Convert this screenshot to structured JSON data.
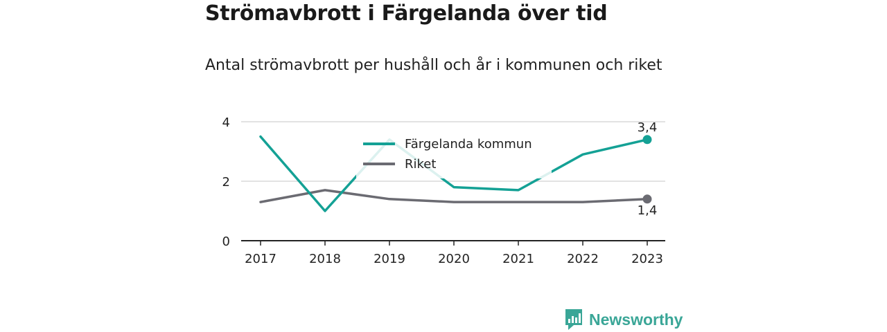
{
  "header": {
    "title": "Strömavbrott i Färgelanda över tid",
    "subtitle": "Antal strömavbrott per hushåll och år i kommunen och riket"
  },
  "brand": {
    "name": "Newsworthy",
    "icon": "bar-chart-logo-icon"
  },
  "colors": {
    "kommun": "#14a195",
    "riket": "#6b6b72",
    "axis": "#222222",
    "grid": "#d9d9d9",
    "brand": "#3aa697"
  },
  "chart_data": {
    "type": "line",
    "x": [
      "2017",
      "2018",
      "2019",
      "2020",
      "2021",
      "2022",
      "2023"
    ],
    "ylim": [
      0,
      4
    ],
    "yticks": [
      "0",
      "2",
      "4"
    ],
    "grid": true,
    "legend_position": "top-center",
    "series": [
      {
        "name": "Färgelanda kommun",
        "values": [
          3.5,
          1.0,
          3.4,
          1.8,
          1.7,
          2.9,
          3.4
        ],
        "end_label": "3,4"
      },
      {
        "name": "Riket",
        "values": [
          1.3,
          1.7,
          1.4,
          1.3,
          1.3,
          1.3,
          1.4
        ],
        "end_label": "1,4"
      }
    ]
  }
}
